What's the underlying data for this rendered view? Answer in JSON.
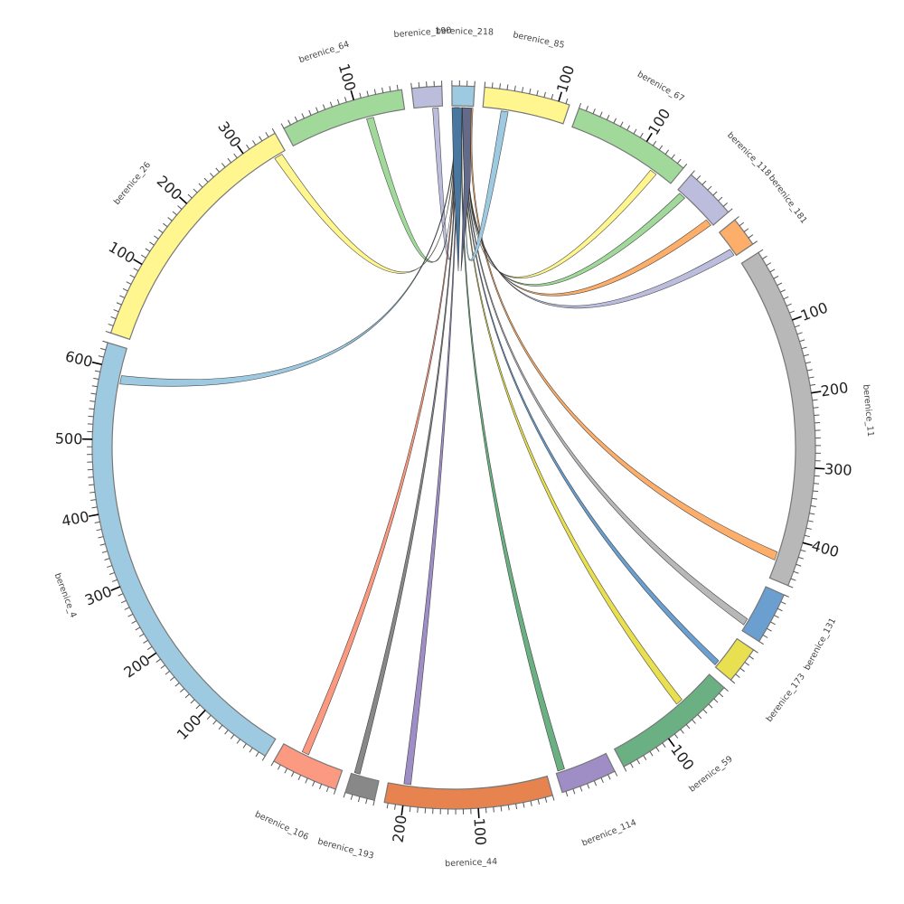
{
  "diagram": {
    "type": "chord",
    "hub_segment": "berenice_218",
    "tick_minor_step": 10,
    "tick_major_step": 100,
    "segments": [
      {
        "name": "berenice_218",
        "length": 30,
        "color": "#9ecae1"
      },
      {
        "name": "berenice_85",
        "length": 115,
        "color": "#fff68f",
        "tick_labels": [
          "100"
        ]
      },
      {
        "name": "berenice_67",
        "length": 160,
        "color": "#a1d99b",
        "tick_labels": [
          "100"
        ]
      },
      {
        "name": "berenice_118",
        "length": 70,
        "color": "#bcbddc"
      },
      {
        "name": "berenice_181",
        "length": 40,
        "color": "#fdae6b"
      },
      {
        "name": "berenice_11",
        "length": 460,
        "color": "#b8b8b8",
        "tick_labels": [
          "100",
          "200",
          "300",
          "400"
        ]
      },
      {
        "name": "berenice_131",
        "length": 70,
        "color": "#6a9fd0"
      },
      {
        "name": "berenice_173",
        "length": 50,
        "color": "#e8e050"
      },
      {
        "name": "berenice_59",
        "length": 170,
        "color": "#6bb082",
        "tick_labels": [
          "100"
        ]
      },
      {
        "name": "berenice_114",
        "length": 75,
        "color": "#9e8ec5"
      },
      {
        "name": "berenice_44",
        "length": 225,
        "color": "#e6834f",
        "tick_labels": [
          "100",
          "200"
        ]
      },
      {
        "name": "berenice_193",
        "length": 40,
        "color": "#888888"
      },
      {
        "name": "berenice_106",
        "length": 90,
        "color": "#fb9a80"
      },
      {
        "name": "berenice_4",
        "length": 630,
        "color": "#9ecae1",
        "tick_labels": [
          "100",
          "200",
          "300",
          "400",
          "500",
          "600"
        ]
      },
      {
        "name": "berenice_26",
        "length": 350,
        "color": "#fff68f",
        "tick_labels": [
          "100",
          "200",
          "300"
        ]
      },
      {
        "name": "berenice_64",
        "length": 165,
        "color": "#a1d99b",
        "tick_labels": [
          "100"
        ]
      },
      {
        "name": "berenice_190",
        "length": 40,
        "color": "#bcbddc"
      }
    ],
    "chords": [
      {
        "from": "berenice_190",
        "from_range": [
          26,
          34
        ],
        "to_range": [
          3,
          4
        ],
        "color": "#bcbddc"
      },
      {
        "from": "berenice_64",
        "from_range": [
          110,
          120
        ],
        "to_range": [
          4,
          5
        ],
        "color": "#a1d99b"
      },
      {
        "from": "berenice_26",
        "from_range": [
          332,
          344
        ],
        "to_range": [
          5,
          6
        ],
        "color": "#fff68f"
      },
      {
        "from": "berenice_4",
        "from_range": [
          579,
          591
        ],
        "to_range": [
          6,
          7
        ],
        "color": "#9ecae1"
      },
      {
        "from": "berenice_106",
        "from_range": [
          52,
          62
        ],
        "to_range": [
          7,
          8
        ],
        "color": "#fb9a80"
      },
      {
        "from": "berenice_193",
        "from_range": [
          28,
          36
        ],
        "to_range": [
          8,
          9
        ],
        "color": "#888888"
      },
      {
        "from": "berenice_44",
        "from_range": [
          193,
          203
        ],
        "to_range": [
          9,
          10
        ],
        "color": "#9e8ec5"
      },
      {
        "from": "berenice_114",
        "from_range": [
          62,
          72
        ],
        "to_range": [
          14,
          15
        ],
        "color": "#6bb082"
      },
      {
        "from": "berenice_59",
        "from_range": [
          52,
          62
        ],
        "to_range": [
          16,
          17
        ],
        "color": "#e8e050"
      },
      {
        "from": "berenice_173",
        "from_range": [
          40,
          48
        ],
        "to_range": [
          17,
          18
        ],
        "color": "#6a9fd0"
      },
      {
        "from": "berenice_131",
        "from_range": [
          52,
          62
        ],
        "to_range": [
          18,
          19
        ],
        "color": "#b8b8b8"
      },
      {
        "from": "berenice_11",
        "from_range": [
          422,
          434
        ],
        "to_range": [
          27.5,
          29.5
        ],
        "color": "#fdae6b"
      },
      {
        "from": "berenice_181",
        "from_range": [
          28,
          38
        ],
        "to_range": [
          20,
          21
        ],
        "color": "#bcbddc"
      },
      {
        "from": "berenice_118",
        "from_range": [
          58,
          68
        ],
        "to_range": [
          21,
          22
        ],
        "color": "#fdae6b"
      },
      {
        "from": "berenice_118",
        "from_range": [
          5,
          15
        ],
        "to_range": [
          22,
          23
        ],
        "color": "#a1d99b"
      },
      {
        "from": "berenice_67",
        "from_range": [
          126,
          136
        ],
        "to_range": [
          23,
          24
        ],
        "color": "#fff68f"
      },
      {
        "from": "berenice_85",
        "from_range": [
          26,
          36
        ],
        "to_range": [
          25,
          26
        ],
        "color": "#9ecae1"
      }
    ],
    "hub_bands": [
      {
        "range": [
          0,
          14
        ],
        "color": "#4a77a0"
      },
      {
        "range": [
          14.5,
          27
        ],
        "color": "#646a8a"
      }
    ]
  }
}
